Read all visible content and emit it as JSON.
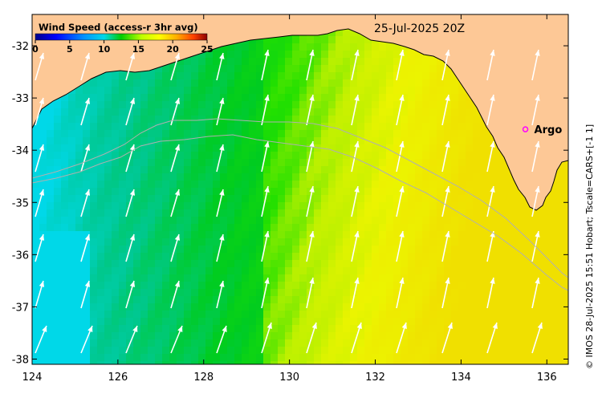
{
  "colorbar": {
    "title": "Wind Speed (access-r 3hr avg)",
    "ticks": [
      "0",
      "5",
      "10",
      "15",
      "20",
      "25"
    ],
    "min": 0,
    "max": 25,
    "colors": [
      "#00008b",
      "#0000ff",
      "#0080ff",
      "#00d8e8",
      "#00cc00",
      "#bfff00",
      "#ffff00",
      "#ffb000",
      "#ff4000",
      "#8b0000"
    ]
  },
  "timestamp": "25-Jul-2025 20Z",
  "argo": {
    "label": "Argo",
    "lon": 135.5,
    "lat": -33.6,
    "color": "#ff00ff"
  },
  "credit": "© IMOS 28-Jul-2025 15:51 Hobart; Tscale=CARS+[-1 1]",
  "axes": {
    "lon_range": [
      124,
      136.5
    ],
    "lat_range": [
      -38.1,
      -31.4
    ],
    "x_ticks": [
      "124",
      "126",
      "128",
      "130",
      "132",
      "134",
      "136"
    ],
    "y_ticks": [
      "-32",
      "-33",
      "-34",
      "-35",
      "-36",
      "-37",
      "-38"
    ]
  },
  "colors": {
    "land": "#fdc896",
    "arrow": "#ffffff",
    "bathymetry": "#b0b0b0"
  }
}
